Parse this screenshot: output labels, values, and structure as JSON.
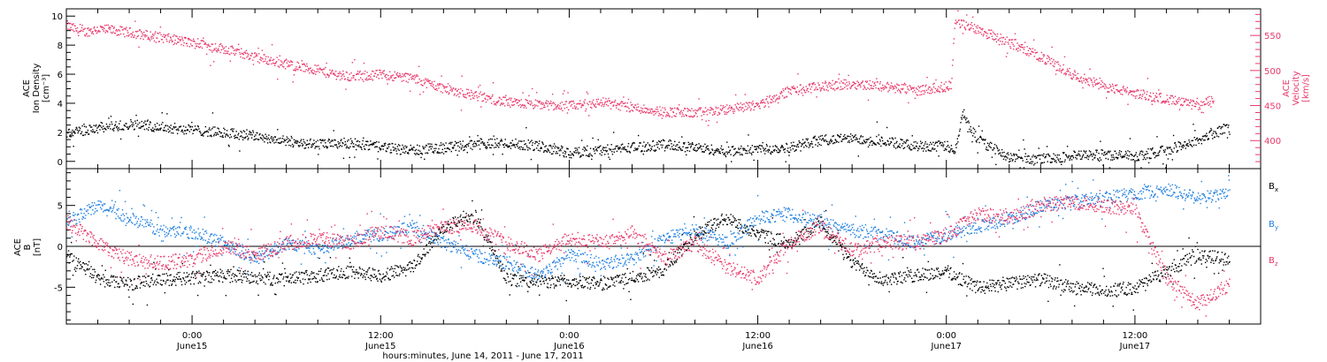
{
  "colors": {
    "density": "#000000",
    "velocity": "#e8396a",
    "bx": "#000000",
    "by": "#1f7fe0",
    "bz": "#e8396a"
  },
  "chart_data": [
    {
      "type": "scatter",
      "panel": "top",
      "x_range_hours": [
        -8,
        68
      ],
      "left_axis": {
        "label_lines": [
          "ACE",
          "Ion Density",
          "[cm⁻³]"
        ],
        "ylim": [
          -0.5,
          10.5
        ],
        "ticks": [
          0,
          2,
          4,
          6,
          8,
          10
        ],
        "tick_labels": [
          "0",
          "2",
          "4",
          "6",
          "8",
          "10"
        ]
      },
      "right_axis": {
        "label_lines": [
          "ACE",
          "Velocity",
          "[km/s]"
        ],
        "ylim": [
          360,
          588
        ],
        "ticks": [
          400,
          450,
          500,
          550
        ],
        "tick_labels": [
          "400",
          "450",
          "500",
          "550"
        ]
      },
      "series": [
        {
          "key": "density",
          "axis": "left",
          "x": [
            -8,
            -6,
            -4,
            -2,
            0,
            2,
            4,
            6,
            8,
            10,
            12,
            14,
            16,
            18,
            20,
            22,
            24,
            26,
            28,
            30,
            32,
            34,
            36,
            38,
            40,
            42,
            44,
            46,
            48,
            48.5,
            49,
            50,
            52,
            54,
            56,
            58,
            60,
            62,
            64,
            66
          ],
          "y": [
            2.0,
            2.3,
            2.6,
            2.4,
            2.2,
            2.0,
            1.8,
            1.4,
            1.2,
            1.3,
            1.0,
            0.8,
            1.0,
            1.2,
            1.3,
            1.1,
            0.6,
            0.8,
            1.0,
            1.2,
            1.0,
            0.7,
            0.9,
            1.0,
            1.5,
            1.6,
            1.4,
            1.1,
            1.1,
            0.6,
            3.2,
            1.5,
            0.3,
            0.2,
            0.4,
            0.5,
            0.4,
            0.8,
            1.5,
            2.4
          ]
        },
        {
          "key": "velocity",
          "axis": "right",
          "x": [
            -8,
            -7,
            -6,
            -5,
            -4,
            -2,
            0,
            2,
            4,
            6,
            8,
            10,
            12,
            14,
            16,
            18,
            20,
            22,
            24,
            26,
            28,
            30,
            32,
            34,
            36,
            38,
            40,
            42,
            44,
            46,
            48,
            48.3,
            48.5,
            50,
            52,
            54,
            56,
            58,
            60,
            62,
            64,
            65
          ],
          "y": [
            565,
            555,
            560,
            558,
            555,
            548,
            540,
            532,
            520,
            510,
            500,
            492,
            495,
            490,
            475,
            465,
            455,
            452,
            450,
            455,
            448,
            442,
            440,
            445,
            452,
            472,
            478,
            482,
            478,
            472,
            478,
            482,
            570,
            560,
            540,
            520,
            495,
            478,
            468,
            460,
            450,
            460
          ]
        }
      ]
    },
    {
      "type": "scatter",
      "panel": "bottom",
      "x_range_hours": [
        -8,
        68
      ],
      "axis": {
        "label_lines": [
          "ACE",
          "B",
          "[nT]"
        ],
        "ylim": [
          -9.5,
          9.5
        ],
        "ticks": [
          -5,
          0,
          5
        ],
        "tick_labels": [
          "-5",
          "0",
          "5"
        ],
        "zero_line": true
      },
      "series": [
        {
          "key": "bx",
          "name": "B",
          "subscript": "x",
          "x": [
            -8,
            -6,
            -4,
            -2,
            0,
            2,
            4,
            6,
            8,
            10,
            12,
            14,
            16,
            18,
            20,
            22,
            24,
            26,
            28,
            30,
            32,
            34,
            36,
            38,
            40,
            42,
            44,
            46,
            48,
            50,
            52,
            54,
            56,
            58,
            60,
            62,
            64,
            66
          ],
          "y": [
            -1.0,
            -3.8,
            -4.5,
            -4.0,
            -3.8,
            -3.5,
            -3.8,
            -4.0,
            -3.5,
            -3.0,
            -3.5,
            -2.5,
            2.5,
            3.8,
            -4.0,
            -4.2,
            -4.3,
            -4.5,
            -3.8,
            -2.8,
            1.5,
            3.5,
            1.5,
            0.5,
            3.0,
            -2.0,
            -4.0,
            -3.5,
            -3.0,
            -5.0,
            -4.5,
            -4.0,
            -5.0,
            -5.3,
            -5.0,
            -3.0,
            -1.0,
            -1.5
          ]
        },
        {
          "key": "by",
          "name": "B",
          "subscript": "y",
          "x": [
            -8,
            -6,
            -4,
            -2,
            0,
            2,
            4,
            6,
            8,
            10,
            12,
            14,
            16,
            18,
            20,
            22,
            24,
            26,
            28,
            30,
            32,
            34,
            36,
            38,
            40,
            42,
            44,
            46,
            48,
            50,
            52,
            54,
            56,
            58,
            60,
            62,
            64,
            66
          ],
          "y": [
            3.0,
            5.0,
            3.5,
            2.0,
            1.8,
            0.5,
            -1.5,
            0.5,
            -0.5,
            1.0,
            1.5,
            2.5,
            0.5,
            -1.0,
            -2.0,
            -3.5,
            -1.0,
            -2.0,
            -1.5,
            1.0,
            2.0,
            0.5,
            3.5,
            4.0,
            3.0,
            2.0,
            1.5,
            0.5,
            1.5,
            2.5,
            3.5,
            5.0,
            5.5,
            6.0,
            6.5,
            7.0,
            6.0,
            6.5
          ]
        },
        {
          "key": "bz",
          "name": "B",
          "subscript": "z",
          "x": [
            -8,
            -6,
            -4,
            -2,
            0,
            2,
            4,
            6,
            8,
            10,
            12,
            14,
            16,
            18,
            20,
            22,
            24,
            26,
            28,
            30,
            32,
            34,
            36,
            38,
            40,
            42,
            44,
            46,
            48,
            50,
            52,
            54,
            56,
            58,
            60,
            62,
            64,
            66
          ],
          "y": [
            3.0,
            0.5,
            -1.5,
            -2.0,
            -1.5,
            0.0,
            -1.0,
            0.5,
            1.0,
            0.5,
            2.0,
            1.0,
            2.5,
            2.5,
            0.5,
            -1.0,
            1.0,
            0.5,
            1.5,
            -1.5,
            0.5,
            -2.5,
            -4.0,
            0.5,
            2.5,
            -0.5,
            0.5,
            0.5,
            1.5,
            4.0,
            3.5,
            5.0,
            5.5,
            5.0,
            4.5,
            -4.0,
            -7.0,
            -4.5
          ]
        }
      ]
    }
  ],
  "x_axis": {
    "ticks": [
      {
        "hour": 0,
        "time": "0:00",
        "date": "June15"
      },
      {
        "hour": 12,
        "time": "12:00",
        "date": "June15"
      },
      {
        "hour": 24,
        "time": "0:00",
        "date": "June16"
      },
      {
        "hour": 36,
        "time": "12:00",
        "date": "June16"
      },
      {
        "hour": 48,
        "time": "0:00",
        "date": "June17"
      },
      {
        "hour": 60,
        "time": "12:00",
        "date": "June17"
      }
    ],
    "title": "hours:minutes, June 14, 2011 - June 17, 2011"
  }
}
